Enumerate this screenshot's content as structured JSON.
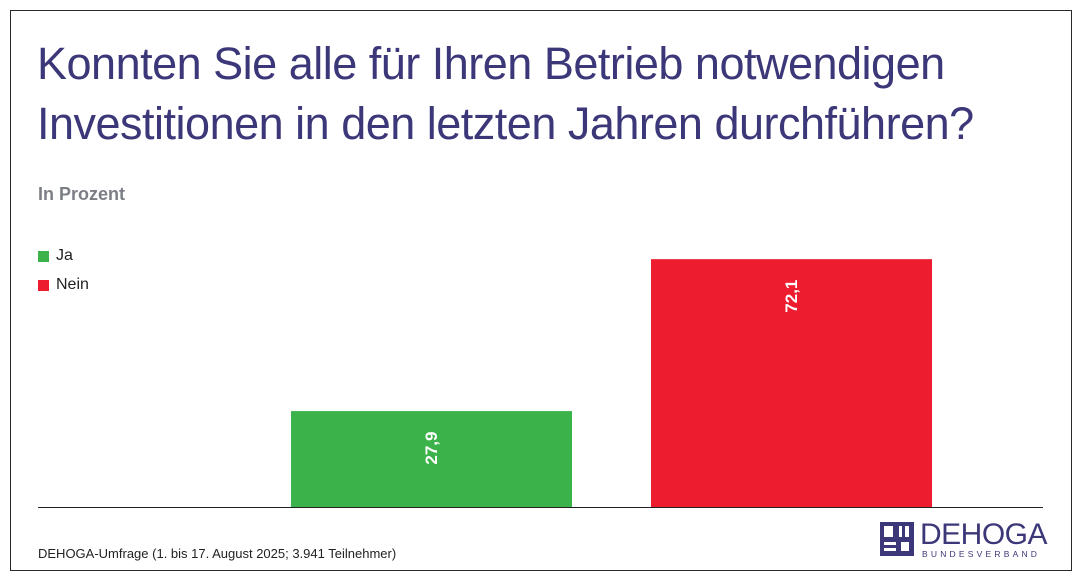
{
  "chart_data": {
    "type": "bar",
    "title": "Konnten Sie alle für Ihren Betrieb notwendigen Investitionen in den letzten Jahren durchführen?",
    "subtitle": "In Prozent",
    "categories": [
      "Ja",
      "Nein"
    ],
    "values": [
      27.9,
      72.1
    ],
    "value_labels": [
      "27,9",
      "72,1"
    ],
    "colors": [
      "#3bb34a",
      "#ed1c2e"
    ],
    "ylim": [
      0,
      80
    ],
    "grid": false,
    "legend_position": "top-left",
    "legend": [
      {
        "label": "Ja",
        "color": "#3bb34a"
      },
      {
        "label": "Nein",
        "color": "#ed1c2e"
      }
    ],
    "xlabel": "",
    "ylabel": ""
  },
  "footer": {
    "source": "DEHOGA-Umfrage (1. bis 17. August 2025; 3.941 Teilnehmer)"
  },
  "logo": {
    "name": "DEHOGA",
    "subtitle": "BUNDESVERBAND",
    "color": "#3b3778"
  },
  "colors": {
    "title": "#3b3778",
    "subtitle": "#7b7f85"
  }
}
